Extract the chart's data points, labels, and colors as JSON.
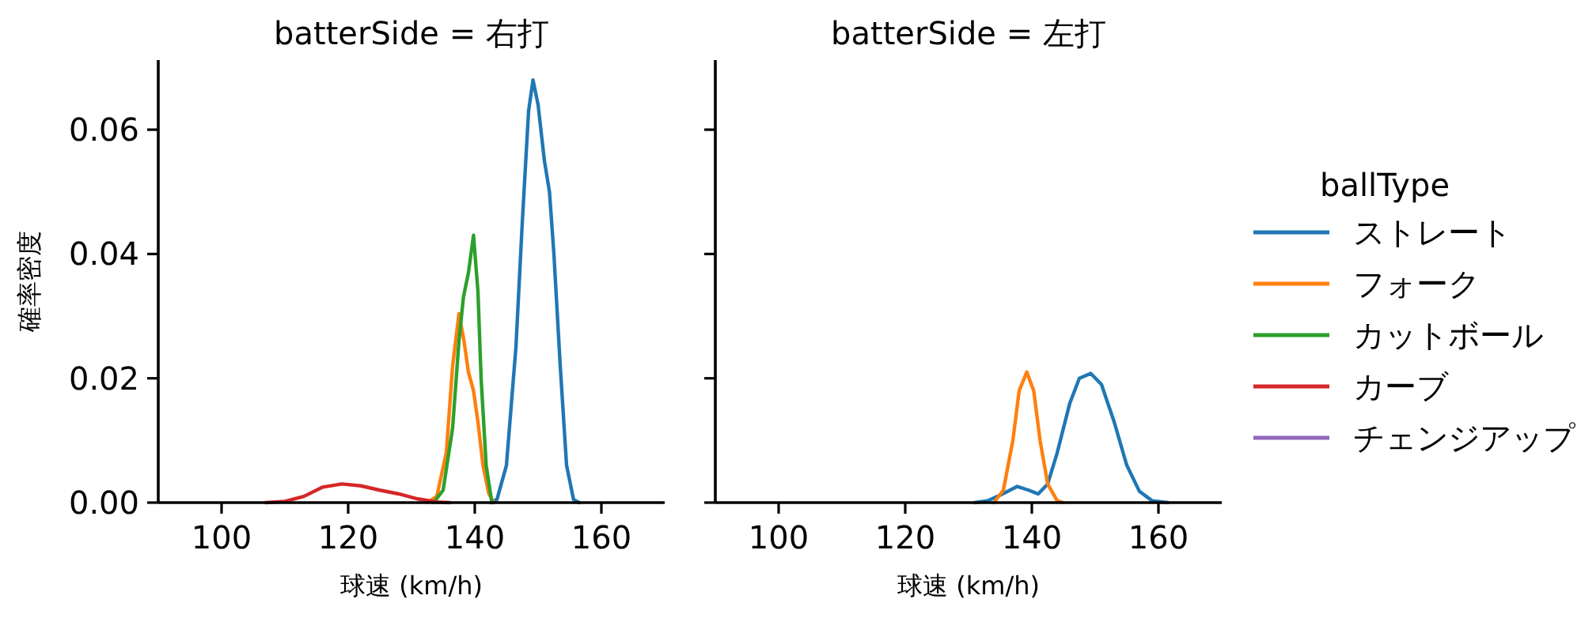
{
  "chart_data": [
    {
      "type": "line",
      "title": "batterSide = 右打",
      "xlabel": "球速 (km/h)",
      "ylabel": "確率密度",
      "xlim": [
        90,
        170
      ],
      "ylim": [
        0,
        0.0712
      ],
      "xticks": [
        100,
        120,
        140,
        160
      ],
      "yticks": [
        {
          "value": 0,
          "label": "0.00"
        },
        {
          "value": 0.02,
          "label": "0.02"
        },
        {
          "value": 0.04,
          "label": "0.04"
        },
        {
          "value": 0.06,
          "label": "0.06"
        }
      ],
      "series": [
        {
          "color": "#1f77b4",
          "x": [
            142.5,
            143.5,
            145,
            146.5,
            147.5,
            148.5,
            149.2,
            150,
            151,
            151.8,
            152.5,
            153.5,
            154.5,
            155.6,
            156.5
          ],
          "values": [
            0,
            0.0005,
            0.006,
            0.025,
            0.045,
            0.063,
            0.068,
            0.064,
            0.055,
            0.05,
            0.04,
            0.022,
            0.006,
            0.0005,
            0
          ]
        },
        {
          "color": "#ff7f0e",
          "x": [
            132.5,
            134,
            135.5,
            136.5,
            137.5,
            138.3,
            139,
            139.8,
            140.5,
            141.3,
            142.2,
            143
          ],
          "values": [
            0,
            0.001,
            0.008,
            0.022,
            0.0304,
            0.026,
            0.021,
            0.018,
            0.013,
            0.006,
            0.0015,
            0
          ]
        },
        {
          "color": "#2ca02c",
          "x": [
            133.5,
            135,
            136.5,
            137.5,
            138.2,
            139,
            139.8,
            140.5,
            141,
            141.8,
            142.7
          ],
          "values": [
            0,
            0.002,
            0.012,
            0.026,
            0.033,
            0.037,
            0.043,
            0.034,
            0.02,
            0.006,
            0
          ]
        },
        {
          "color": "#d62728",
          "x": [
            107,
            110,
            113,
            116,
            119,
            122,
            125,
            128,
            131,
            134,
            136
          ],
          "values": [
            0,
            0.0002,
            0.001,
            0.0025,
            0.003,
            0.0027,
            0.002,
            0.0014,
            0.0006,
            0.0001,
            0
          ]
        }
      ]
    },
    {
      "type": "line",
      "title": "batterSide = 左打",
      "xlabel": "球速 (km/h)",
      "xlim": [
        90,
        170
      ],
      "ylim": [
        0,
        0.0712
      ],
      "tick_labels": "x",
      "legend": "right",
      "legend_title": "ballType",
      "xticks": [
        100,
        120,
        140,
        160
      ],
      "yticks": [
        {
          "value": 0,
          "label": null
        },
        {
          "value": 0.02,
          "label": null
        },
        {
          "value": 0.04,
          "label": null
        },
        {
          "value": 0.06,
          "label": null
        }
      ],
      "series": [
        {
          "name": "ストレート",
          "color": "#1f77b4",
          "x": [
            131,
            133,
            135,
            137.7,
            139.5,
            141,
            142.5,
            144,
            146,
            147.5,
            149.3,
            151,
            153,
            155,
            157,
            159,
            161.5
          ],
          "values": [
            0,
            0.0003,
            0.0012,
            0.0026,
            0.002,
            0.0014,
            0.003,
            0.008,
            0.016,
            0.02,
            0.0208,
            0.019,
            0.013,
            0.006,
            0.0018,
            0.0003,
            0
          ]
        },
        {
          "name": "フォーク",
          "color": "#ff7f0e",
          "x": [
            134,
            135.5,
            137,
            138,
            139.2,
            140.3,
            141.3,
            142.5,
            144,
            145
          ],
          "values": [
            0,
            0.002,
            0.01,
            0.018,
            0.021,
            0.018,
            0.01,
            0.003,
            0.0003,
            0
          ]
        },
        {
          "name": "カットボール",
          "color": "#2ca02c"
        },
        {
          "name": "カーブ",
          "color": "#d62728"
        },
        {
          "name": "チェンジアップ",
          "color": "#9467bd"
        }
      ]
    }
  ]
}
